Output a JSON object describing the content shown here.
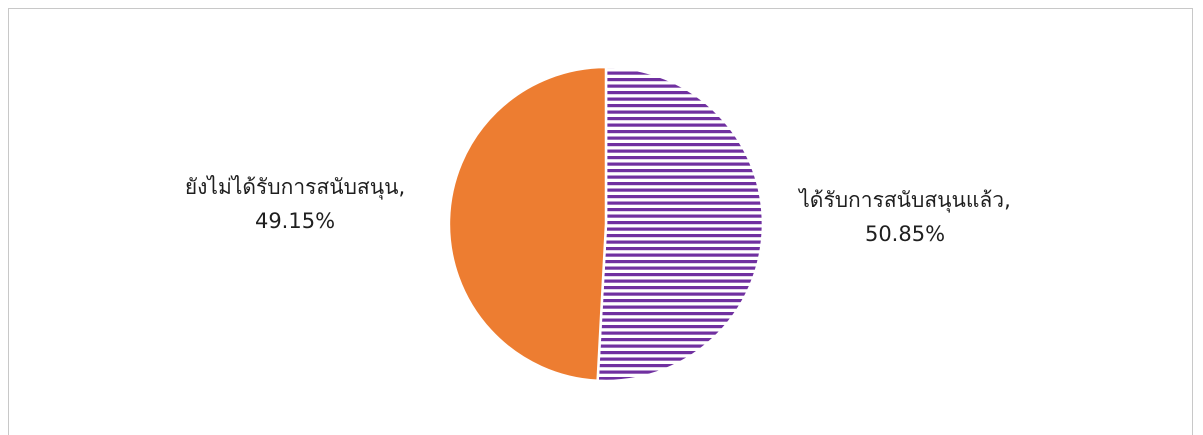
{
  "chart_data": {
    "type": "pie",
    "title": "",
    "slices": [
      {
        "category": "ได้รับการสนับสนุนแล้ว",
        "value": 50.85,
        "value_label": "50.85%",
        "color": "#7030a0",
        "fill_pattern": "horizontal-stripes"
      },
      {
        "category": "ยังไม่ได้รับการสนับสนุน",
        "value": 49.15,
        "value_label": "49.15%",
        "color": "#ed7d31",
        "fill_pattern": "solid"
      }
    ],
    "start_angle_deg": 0,
    "direction": "clockwise",
    "legend": "none",
    "data_labels": "category, value outside"
  },
  "labels": {
    "supported_category": "ได้รับการสนับสนุนแล้ว,",
    "supported_value": "50.85%",
    "not_supported_category": "ยังไม่ได้รับการสนับสนุน,",
    "not_supported_value": "49.15%"
  }
}
